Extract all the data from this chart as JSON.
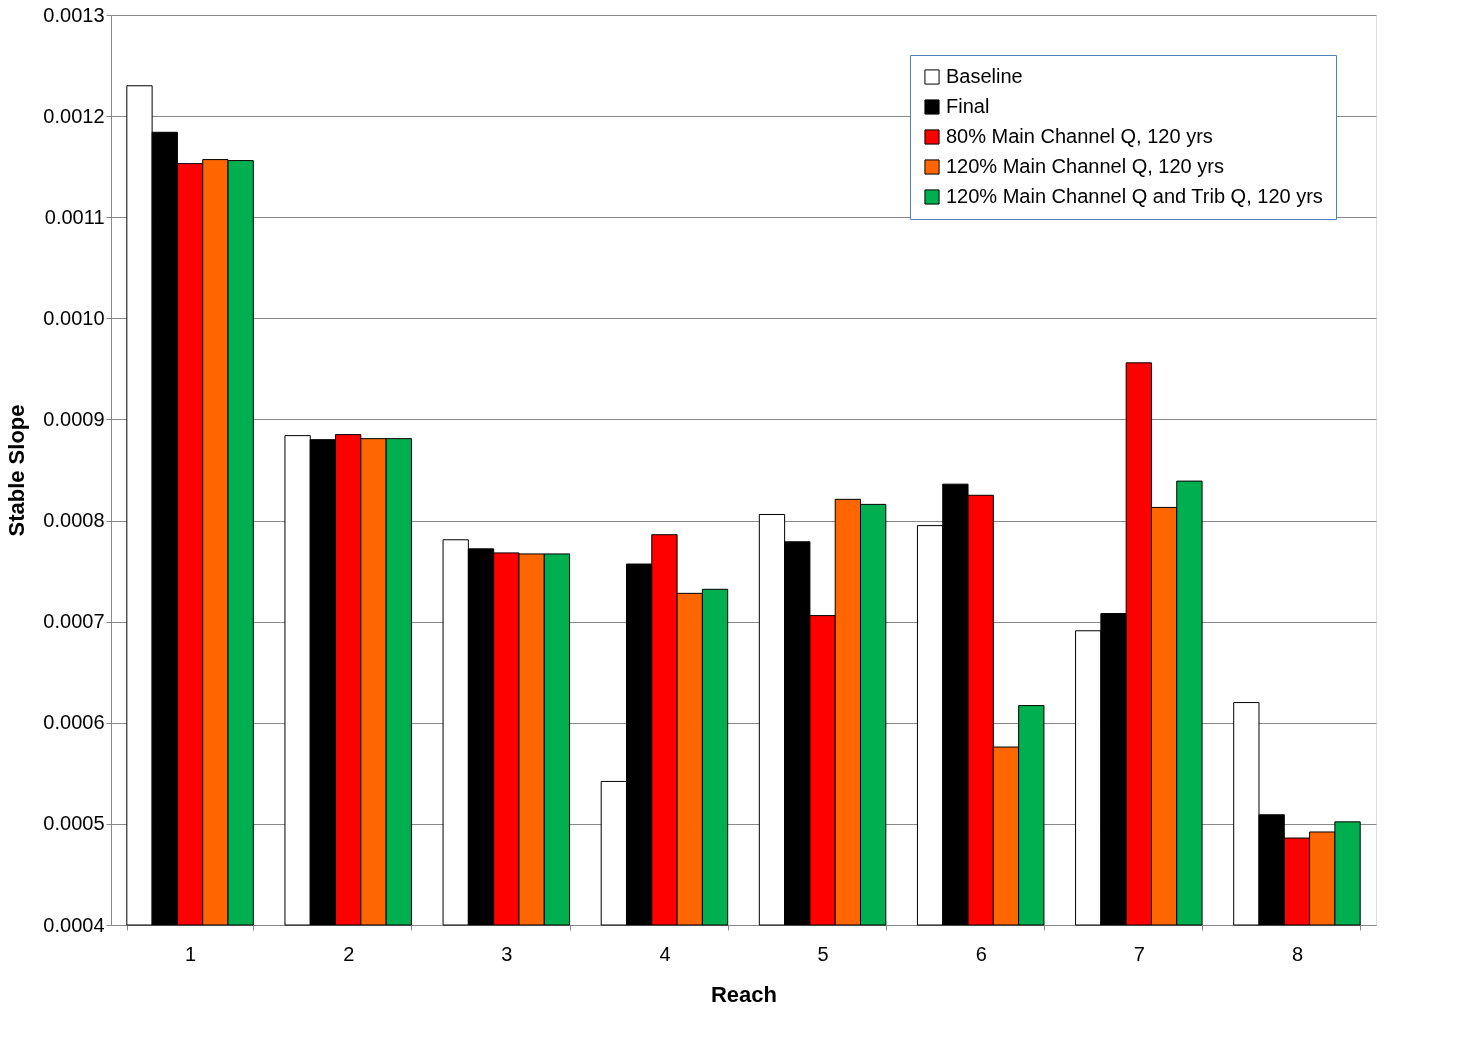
{
  "chart_data": {
    "type": "bar",
    "xlabel": "Reach",
    "ylabel": "Stable Slope",
    "categories": [
      "1",
      "2",
      "3",
      "4",
      "5",
      "6",
      "7",
      "8"
    ],
    "series": [
      {
        "name": "Baseline",
        "color": "#ffffff",
        "values": [
          0.00123,
          0.000884,
          0.000781,
          0.000542,
          0.000806,
          0.000795,
          0.000691,
          0.00062
        ]
      },
      {
        "name": "Final",
        "color": "#000000",
        "values": [
          0.001184,
          0.00088,
          0.000772,
          0.000757,
          0.000779,
          0.000836,
          0.000708,
          0.000509
        ]
      },
      {
        "name": "80% Main Channel  Q, 120 yrs",
        "color": "#ff0000",
        "values": [
          0.001153,
          0.000885,
          0.000768,
          0.000786,
          0.000706,
          0.000825,
          0.000956,
          0.000486
        ]
      },
      {
        "name": "120% Main Channel Q, 120 yrs",
        "color": "#ff6600",
        "values": [
          0.001157,
          0.000881,
          0.000767,
          0.000728,
          0.000821,
          0.000576,
          0.000813,
          0.000492
        ]
      },
      {
        "name": "120% Main Channel Q and Trib Q, 120 yrs",
        "color": "#00b050",
        "values": [
          0.001156,
          0.000881,
          0.000767,
          0.000732,
          0.000816,
          0.000617,
          0.000839,
          0.000502
        ]
      }
    ],
    "ylim": [
      0.0004,
      0.0013
    ],
    "yticks": [
      {
        "value": 0.0004,
        "label": "0.0004"
      },
      {
        "value": 0.0005,
        "label": "0.0005"
      },
      {
        "value": 0.0006,
        "label": "0.0006"
      },
      {
        "value": 0.0007,
        "label": "0.0007"
      },
      {
        "value": 0.0008,
        "label": "0.0008"
      },
      {
        "value": 0.0009,
        "label": "0.0009"
      },
      {
        "value": 0.001,
        "label": "0.0010"
      },
      {
        "value": 0.0011,
        "label": "0.0011"
      },
      {
        "value": 0.0012,
        "label": "0.0012"
      },
      {
        "value": 0.0013,
        "label": "0.0013"
      }
    ],
    "grid": "y",
    "legend": "top right"
  }
}
